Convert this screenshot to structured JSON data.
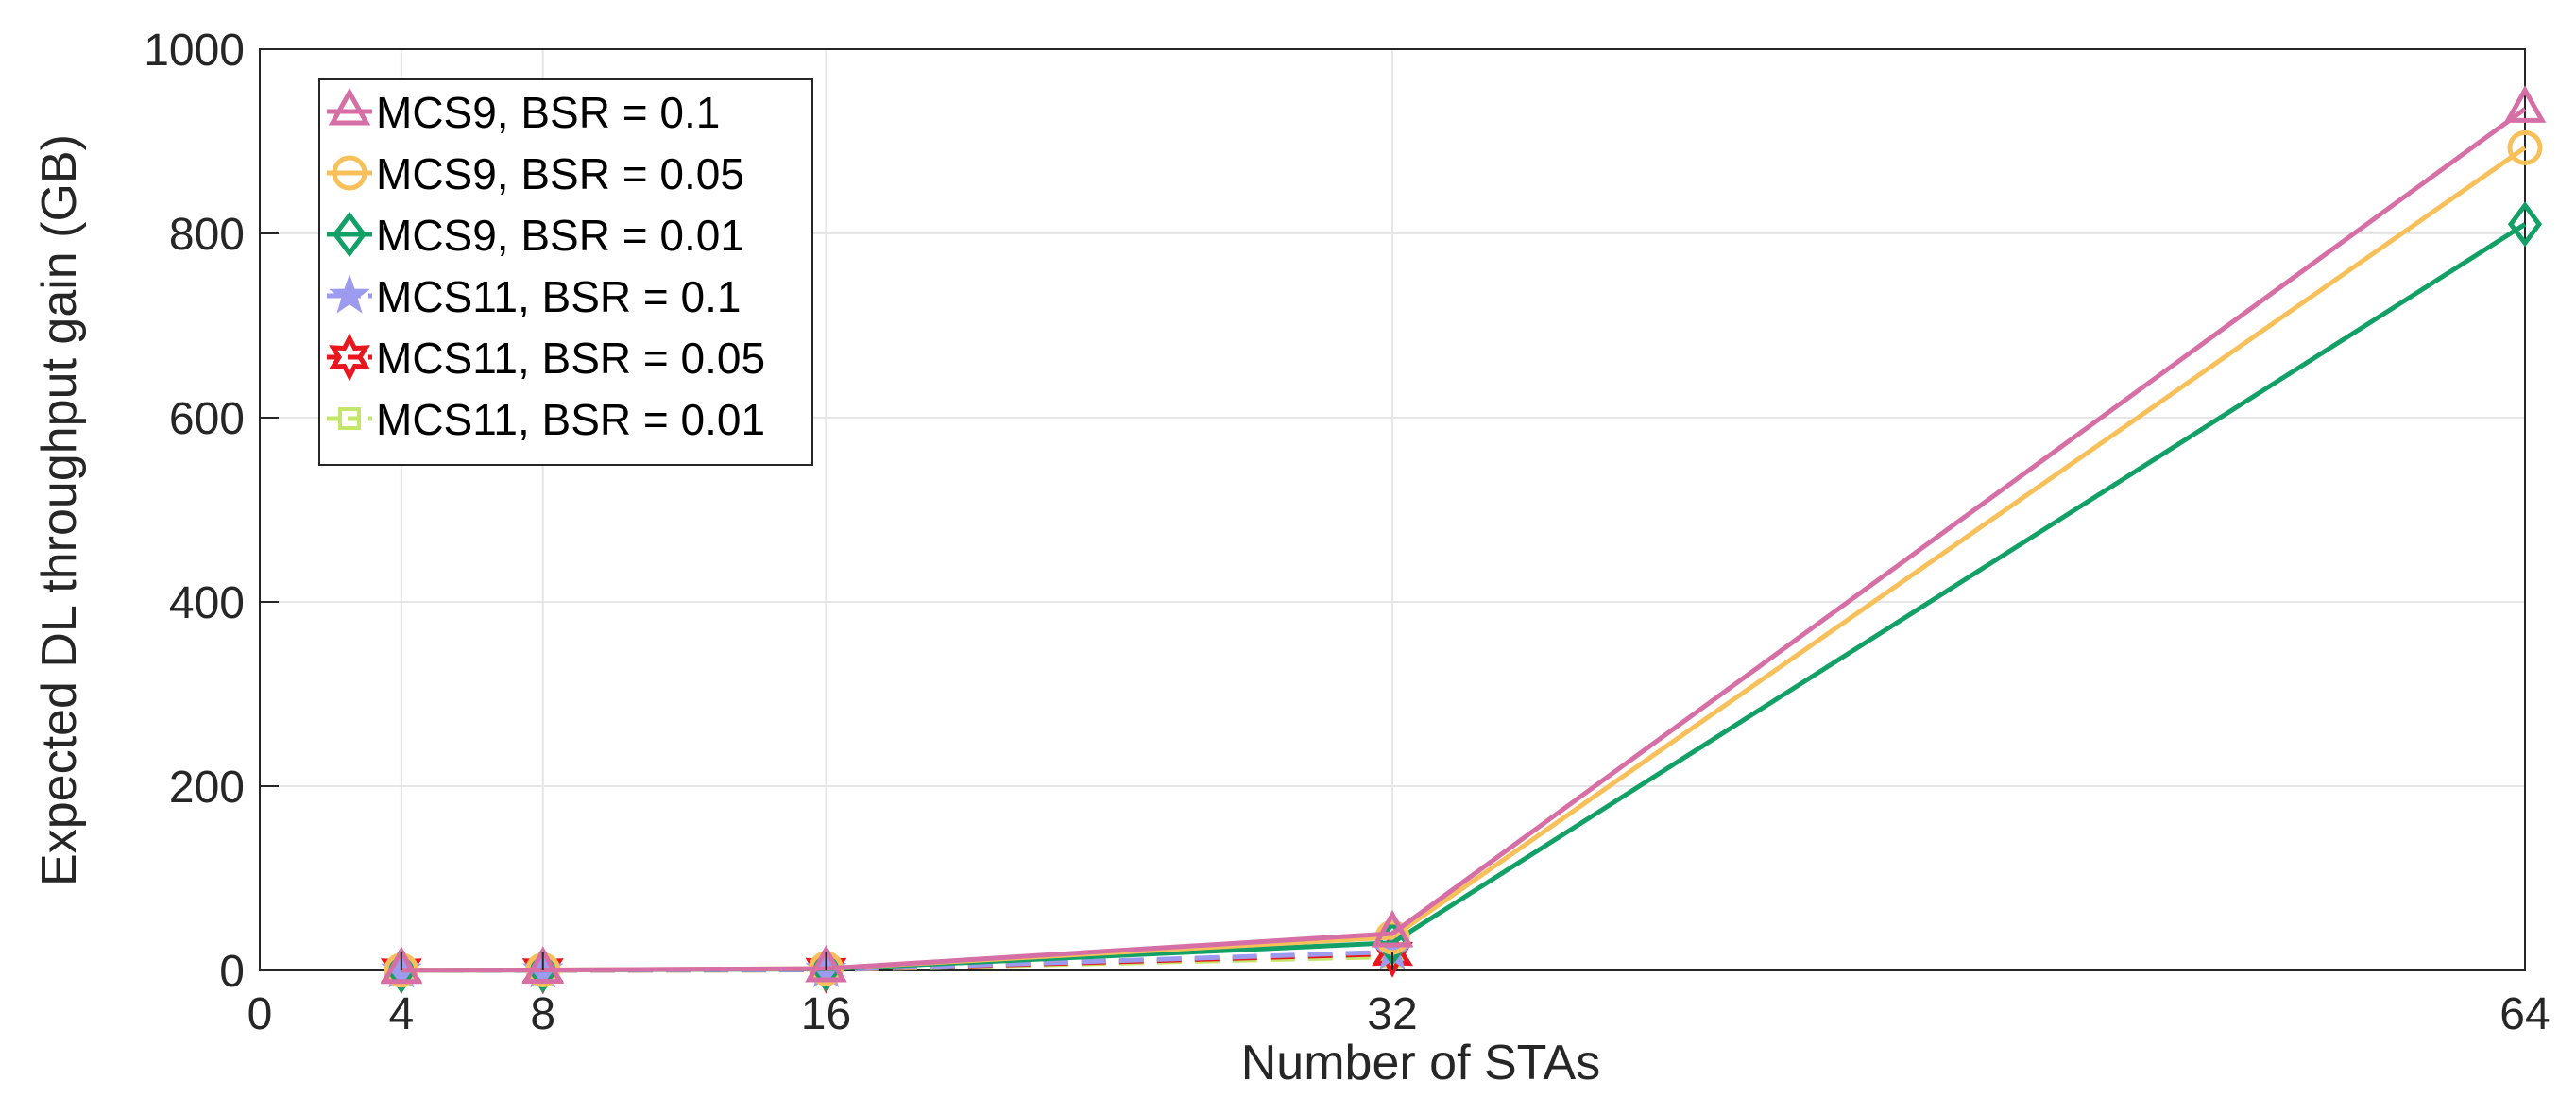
{
  "chart_data": {
    "type": "line",
    "title": "",
    "xlabel": "Number of STAs",
    "ylabel": "Expected DL throughput gain (GB)",
    "x": [
      4,
      8,
      16,
      32,
      64
    ],
    "x_ticks": [
      "0",
      "4",
      "8",
      "16",
      "32",
      "64"
    ],
    "y_ticks": [
      "0",
      "200",
      "400",
      "600",
      "800",
      "1000"
    ],
    "xlim": [
      0,
      64
    ],
    "ylim": [
      0,
      1000
    ],
    "grid": true,
    "legend_position": "top-left",
    "series": [
      {
        "name": "MCS9, BSR = 0.1",
        "color": "#d56fa5",
        "marker": "triangle",
        "dash": "solid",
        "x": [
          4,
          8,
          16,
          32,
          64
        ],
        "values": [
          0.2,
          0.5,
          2,
          40,
          935
        ]
      },
      {
        "name": "MCS9, BSR = 0.05",
        "color": "#f8c05a",
        "marker": "circle",
        "dash": "solid",
        "x": [
          4,
          8,
          16,
          32,
          64
        ],
        "values": [
          0.2,
          0.5,
          2,
          36,
          893
        ]
      },
      {
        "name": "MCS9, BSR = 0.01",
        "color": "#12a067",
        "marker": "diamond",
        "dash": "solid",
        "x": [
          4,
          8,
          16,
          32,
          64
        ],
        "values": [
          0.1,
          0.4,
          1.5,
          30,
          810
        ]
      },
      {
        "name": "MCS11, BSR = 0.1",
        "color": "#9d9bef",
        "marker": "pentagram",
        "dash": "dashed",
        "x": [
          4,
          8,
          16,
          32
        ],
        "values": [
          0.1,
          0.2,
          0.6,
          20
        ]
      },
      {
        "name": "MCS11, BSR = 0.05",
        "color": "#e8171f",
        "marker": "hexagram",
        "dash": "dashed",
        "x": [
          4,
          8,
          16,
          32
        ],
        "values": [
          0.1,
          0.2,
          0.5,
          18
        ]
      },
      {
        "name": "MCS11, BSR = 0.01",
        "color": "#c3e66b",
        "marker": "square",
        "dash": "dashed",
        "x": [
          4,
          8,
          16,
          32
        ],
        "values": [
          0.05,
          0.1,
          0.4,
          15
        ]
      }
    ]
  }
}
